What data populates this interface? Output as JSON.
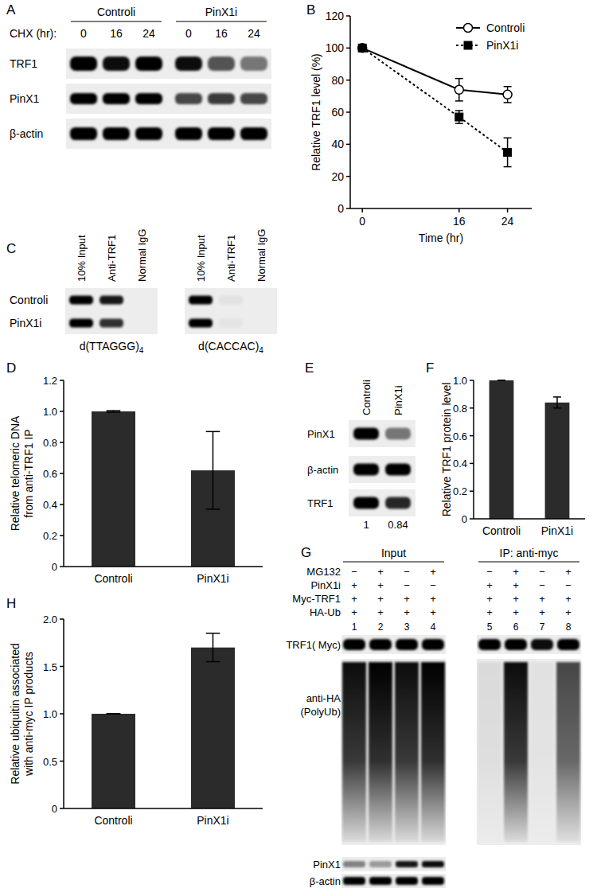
{
  "chart_data": [
    {
      "type": "line",
      "title": "B",
      "x": [
        0,
        16,
        24
      ],
      "xlim": [
        -2,
        28
      ],
      "xticks": [
        0,
        16,
        24
      ],
      "ylim": [
        0,
        120
      ],
      "yticks": [
        0,
        20,
        40,
        60,
        80,
        100,
        120
      ],
      "xlabel": "Time (hr)",
      "ylabel": "Relative TRF1 level (%)",
      "legend": "top-right",
      "series": [
        {
          "name": "Controli",
          "color": "#000000",
          "marker": "open-circle",
          "line_style": "solid",
          "values": [
            100,
            74,
            71
          ],
          "errors": [
            0,
            7,
            5
          ]
        },
        {
          "name": "PinX1i",
          "color": "#000000",
          "marker": "square",
          "line_style": "dotted",
          "values": [
            100,
            57,
            35
          ],
          "errors": [
            0,
            4,
            9
          ]
        }
      ]
    },
    {
      "type": "bar",
      "title": "D",
      "categories": [
        "Controli",
        "PinX1i"
      ],
      "values": [
        1.0,
        0.62
      ],
      "errors": [
        0.005,
        0.25
      ],
      "color": "#2b2b2b",
      "ylim": [
        0,
        1.2
      ],
      "yticks": [
        0,
        0.2,
        0.4,
        0.6,
        0.8,
        {
          "value": 1.0,
          "label": "1.0"
        },
        1.2
      ],
      "ylabel": [
        "Relative telomeric DNA",
        "from anti-TRF1 IP"
      ]
    },
    {
      "type": "bar",
      "title": "F",
      "categories": [
        "Controli",
        "PinX1i"
      ],
      "values": [
        1.0,
        0.84
      ],
      "errors": [
        0,
        0.04
      ],
      "color": "#2b2b2b",
      "ylim": [
        0,
        1.0
      ],
      "yticks": [
        0,
        0.2,
        0.4,
        0.6,
        0.8,
        {
          "value": 1.0,
          "label": "1.0"
        }
      ],
      "ylabel": "Relative TRF1 protein level"
    },
    {
      "type": "bar",
      "title": "H",
      "categories": [
        "Controli",
        "PinX1i"
      ],
      "values": [
        1.0,
        1.7
      ],
      "errors": [
        0,
        0.15
      ],
      "color": "#2b2b2b",
      "ylim": [
        0,
        2.0
      ],
      "yticks": [
        0,
        0.5,
        {
          "value": 1.0,
          "label": "1.0"
        },
        1.5,
        {
          "value": 2.0,
          "label": "2.0"
        }
      ],
      "ylabel": [
        "Relative ubiquitin associated",
        "with anti-myc IP products"
      ]
    }
  ],
  "blots": {
    "A": {
      "title": "A",
      "groups": [
        {
          "label": "Controli",
          "lanes": 3
        },
        {
          "label": "PinX1i",
          "lanes": 3
        }
      ],
      "lane_row": {
        "label": "CHX (hr):",
        "values": [
          0,
          16,
          24,
          0,
          16,
          24
        ]
      },
      "rows": [
        {
          "label": "TRF1",
          "intensity": [
            1,
            0.95,
            1,
            0.95,
            0.65,
            0.5
          ]
        },
        {
          "label": "PinX1",
          "intensity": [
            1,
            1,
            1,
            0.7,
            0.75,
            0.7
          ]
        },
        {
          "label": "β-actin",
          "intensity": [
            1,
            1,
            1,
            1,
            1,
            1
          ]
        }
      ]
    },
    "C": {
      "title": "C",
      "columns": [
        "10% Input",
        "Anti-TRF1",
        "Normal IgG"
      ],
      "rows": [
        "Controli",
        "PinX1i"
      ],
      "blots": [
        {
          "caption": {
            "text": "d(TTAGGG)",
            "sub": "4"
          },
          "intensity": [
            [
              1,
              0.9,
              0
            ],
            [
              1,
              0.8,
              0
            ]
          ]
        },
        {
          "caption": {
            "text": "d(CACCAC)",
            "sub": "4"
          },
          "intensity": [
            [
              1,
              0.05,
              0
            ],
            [
              1,
              0.04,
              0
            ]
          ]
        }
      ]
    },
    "E": {
      "title": "E",
      "columns": [
        "Controli",
        "PinX1i"
      ],
      "rows": [
        {
          "label": "PinX1",
          "intensity": [
            1,
            0.5
          ]
        },
        {
          "label": "β-actin",
          "intensity": [
            1,
            1
          ]
        },
        {
          "label": "TRF1",
          "intensity": [
            1,
            0.84
          ]
        }
      ],
      "quantification": [
        1,
        0.84
      ]
    },
    "G": {
      "title": "G",
      "groups": [
        {
          "label": "Input",
          "lanes": 4
        },
        {
          "label": "IP: anti-myc",
          "lanes": 4
        }
      ],
      "conditions": [
        {
          "label": "MG132",
          "values": [
            "−",
            "+",
            "−",
            "+",
            "−",
            "+",
            "−",
            "+"
          ]
        },
        {
          "label": "PinX1i",
          "values": [
            "+",
            "+",
            "−",
            "−",
            "+",
            "+",
            "−",
            "−"
          ]
        },
        {
          "label": "Myc-TRF1",
          "values": [
            "+",
            "+",
            "+",
            "+",
            "+",
            "+",
            "+",
            "+"
          ]
        },
        {
          "label": "HA-Ub",
          "values": [
            "+",
            "+",
            "+",
            "+",
            "+",
            "+",
            "+",
            "+"
          ]
        }
      ],
      "lane_numbers": [
        1,
        2,
        3,
        4,
        5,
        6,
        7,
        8
      ],
      "rows": [
        {
          "label": "TRF1( Myc)",
          "intensity": [
            1,
            1,
            1,
            1,
            1,
            1,
            0.95,
            1
          ]
        },
        {
          "label": [
            "anti-HA",
            "(PolyUb)"
          ],
          "intensity": [
            0.95,
            1,
            0.95,
            1,
            0.08,
            0.95,
            0.05,
            0.7
          ]
        },
        {
          "label": "PinX1",
          "intensity": [
            0.45,
            0.35,
            0.9,
            0.95
          ]
        },
        {
          "label": "β-actin",
          "intensity": [
            1,
            1,
            1,
            1
          ]
        }
      ]
    }
  }
}
